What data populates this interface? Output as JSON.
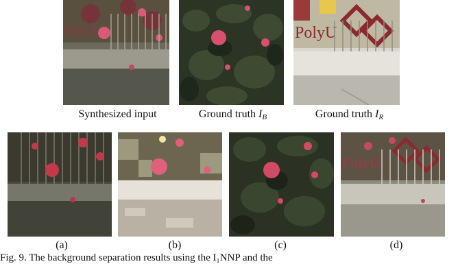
{
  "top_row": [
    {
      "label": "Synthesized input"
    },
    {
      "label_prefix": "Ground truth",
      "symbol": "I",
      "subscript": "B"
    },
    {
      "label_prefix": "Ground truth",
      "symbol": "I",
      "subscript": "R"
    }
  ],
  "bottom_row": [
    {
      "label": "(a)"
    },
    {
      "label": "(b)"
    },
    {
      "label": "(c)"
    },
    {
      "label": "(d)"
    }
  ],
  "sign_text": "PolyU",
  "caption": "Fig. 9. The background separation results using the I₁NNP and the"
}
